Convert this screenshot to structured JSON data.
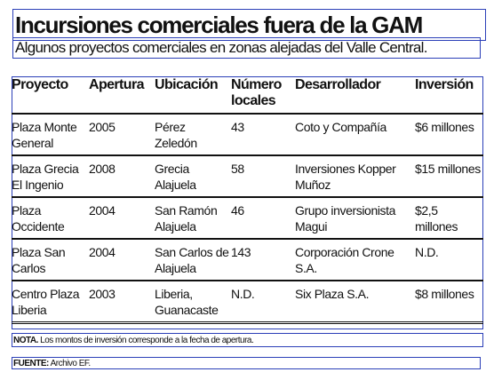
{
  "title": "Incursiones comerciales fuera de la GAM",
  "subtitle": "Algunos proyectos comerciales en zonas alejadas del Valle Central.",
  "table": {
    "headers": [
      "Proyecto",
      "Apertura",
      "Ubicación",
      "Número locales",
      "Desarrollador",
      "Inversión"
    ],
    "rows": [
      [
        "Plaza Monte General",
        "2005",
        "Pérez Zeledón",
        "43",
        "Coto y Compañía",
        "$6 millones"
      ],
      [
        "Plaza Grecia El Ingenio",
        "2008",
        "Grecia Alajuela",
        "58",
        "Inversiones Kopper Muñoz",
        "$15 millones"
      ],
      [
        "Plaza Occidente",
        "2004",
        "San Ramón Alajuela",
        "46",
        "Grupo inversionista Magui",
        "$2,5 millones"
      ],
      [
        "Plaza San Carlos",
        "2004",
        "San Carlos de Alajuela",
        "143",
        "Corporación Crone S.A.",
        "N.D."
      ],
      [
        "Centro Plaza Liberia",
        "2003",
        "Liberia, Guanacaste",
        "N.D.",
        "Six Plaza S.A.",
        "$8 millones"
      ]
    ]
  },
  "nota": {
    "label": "NOTA.",
    "text": "Los montos de inversión corresponde a la fecha de apertura."
  },
  "fuente": {
    "label": "FUENTE:",
    "text": "Archivo EF."
  }
}
